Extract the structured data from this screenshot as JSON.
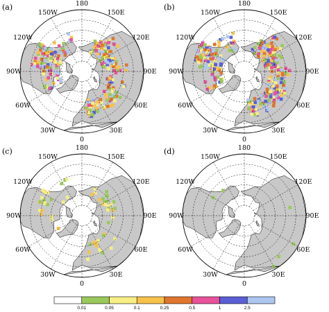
{
  "figure": {
    "panels": [
      {
        "label": "(a)",
        "intensity": 3,
        "longitude_labels": {
          "top": "180",
          "upper_left": "150W",
          "upper_right": "150E",
          "left_upper": "120W",
          "right_upper": "120E",
          "left": "90W",
          "right": "90E",
          "left_lower": "60W",
          "right_lower": "60E",
          "lower_left": "30W",
          "lower_right": "30E",
          "bottom": "0"
        }
      },
      {
        "label": "(b)",
        "intensity": 4,
        "longitude_labels": {
          "top": "180",
          "upper_left": "150W",
          "upper_right": "150E",
          "left_upper": "120W",
          "right_upper": "120E",
          "left": "90W",
          "right": "90E",
          "left_lower": "60W",
          "right_lower": "60E",
          "lower_left": "30W",
          "lower_right": "30E",
          "bottom": "0"
        }
      },
      {
        "label": "(c)",
        "intensity": 1,
        "longitude_labels": {
          "top": "180",
          "upper_left": "150W",
          "upper_right": "150E",
          "left_upper": "120W",
          "right_upper": "120E",
          "left": "90W",
          "right": "90E",
          "left_lower": "60W",
          "right_lower": "60E",
          "lower_left": "30W",
          "lower_right": "30E",
          "bottom": "0"
        }
      },
      {
        "label": "(d)",
        "intensity": 0,
        "longitude_labels": {
          "top": "180",
          "upper_left": "150W",
          "upper_right": "150E",
          "left_upper": "120W",
          "right_upper": "120E",
          "left": "90W",
          "right": "90E",
          "left_lower": "60W",
          "right_lower": "60E",
          "lower_left": "30W",
          "lower_right": "30E",
          "bottom": "0"
        }
      }
    ],
    "colorbar": {
      "labels": [
        "0.01",
        "0.05",
        "0.1",
        "0.25",
        "0.5",
        "1",
        "2.5"
      ],
      "colors": [
        "#ffffff",
        "#99c95a",
        "#f7ee85",
        "#f7c24b",
        "#e0762e",
        "#e8529a",
        "#5a5fd6",
        "#adc6f0"
      ]
    },
    "colors": {
      "land": "#c8c8c8",
      "ocean": "#ffffff",
      "coast": "#000000",
      "grid": "#000000"
    }
  }
}
